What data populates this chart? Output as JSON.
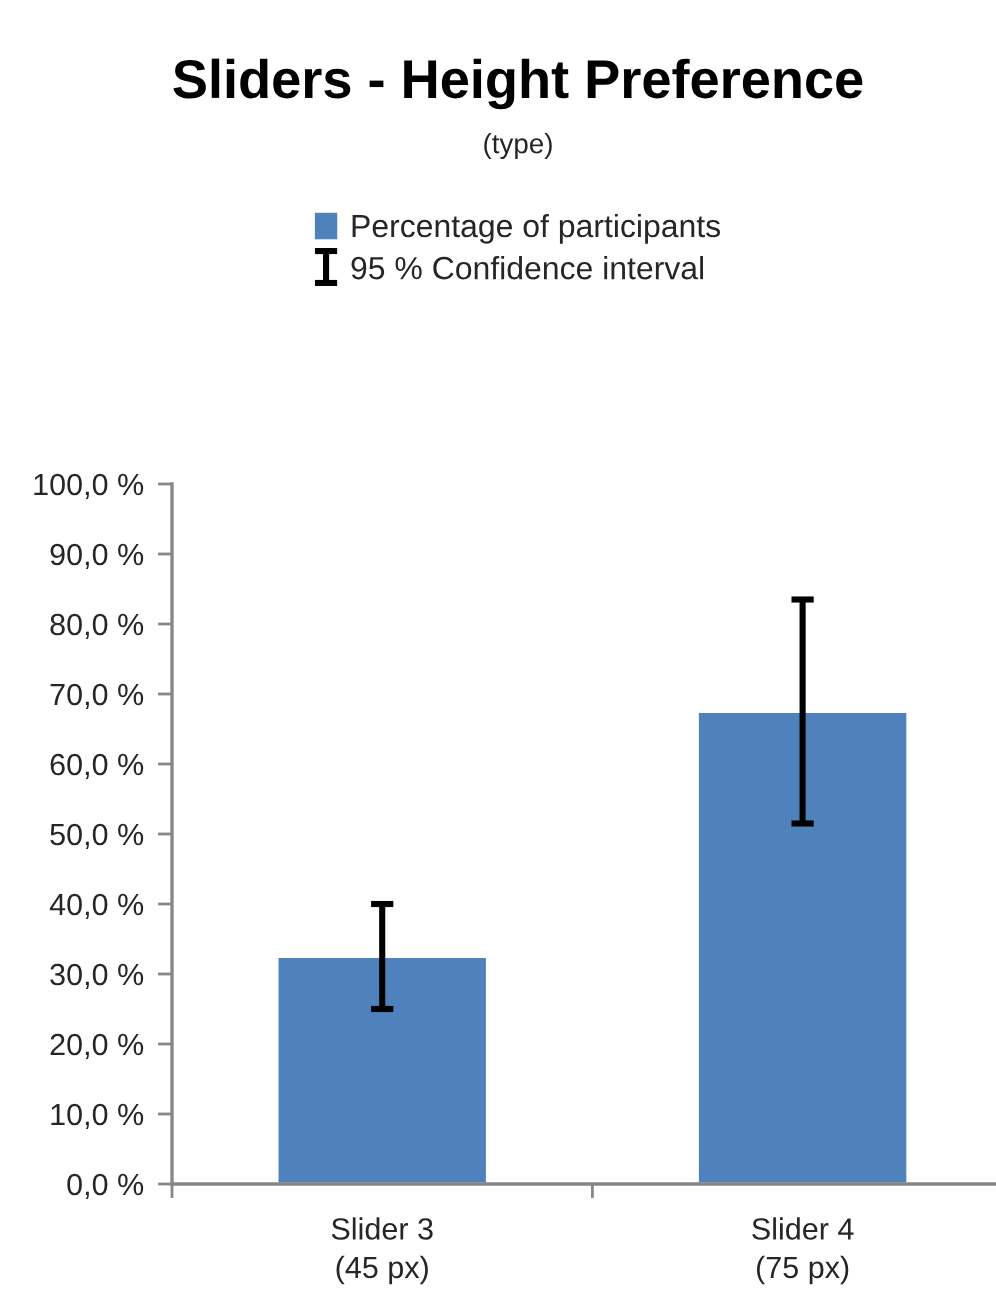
{
  "chart_data": {
    "type": "bar",
    "title": "Sliders - Height Preference",
    "subtitle": "(type)",
    "categories": [
      "Slider 3\n(45 px)",
      "Slider 4\n(75 px)"
    ],
    "series": [
      {
        "name": "Percentage of participants",
        "color": "#4f81bd",
        "values": [
          32.5,
          67.5
        ],
        "errors": [
          7.5,
          16
        ]
      }
    ],
    "annotations": [
      "95 % Confidence interval"
    ],
    "ylim": [
      0,
      100
    ],
    "yticks": [
      {
        "value": 0,
        "label": "0,0 %"
      },
      {
        "value": 10,
        "label": "10,0 %"
      },
      {
        "value": 20,
        "label": "20,0 %"
      },
      {
        "value": 30,
        "label": "30,0 %"
      },
      {
        "value": 40,
        "label": "40,0 %"
      },
      {
        "value": 50,
        "label": "50,0 %"
      },
      {
        "value": 60,
        "label": "60,0 %"
      },
      {
        "value": 70,
        "label": "70,0 %"
      },
      {
        "value": 80,
        "label": "80,0 %"
      },
      {
        "value": 90,
        "label": "90,0 %"
      },
      {
        "value": 100,
        "label": "100,0 %"
      }
    ],
    "grid": false,
    "legend": "top"
  }
}
